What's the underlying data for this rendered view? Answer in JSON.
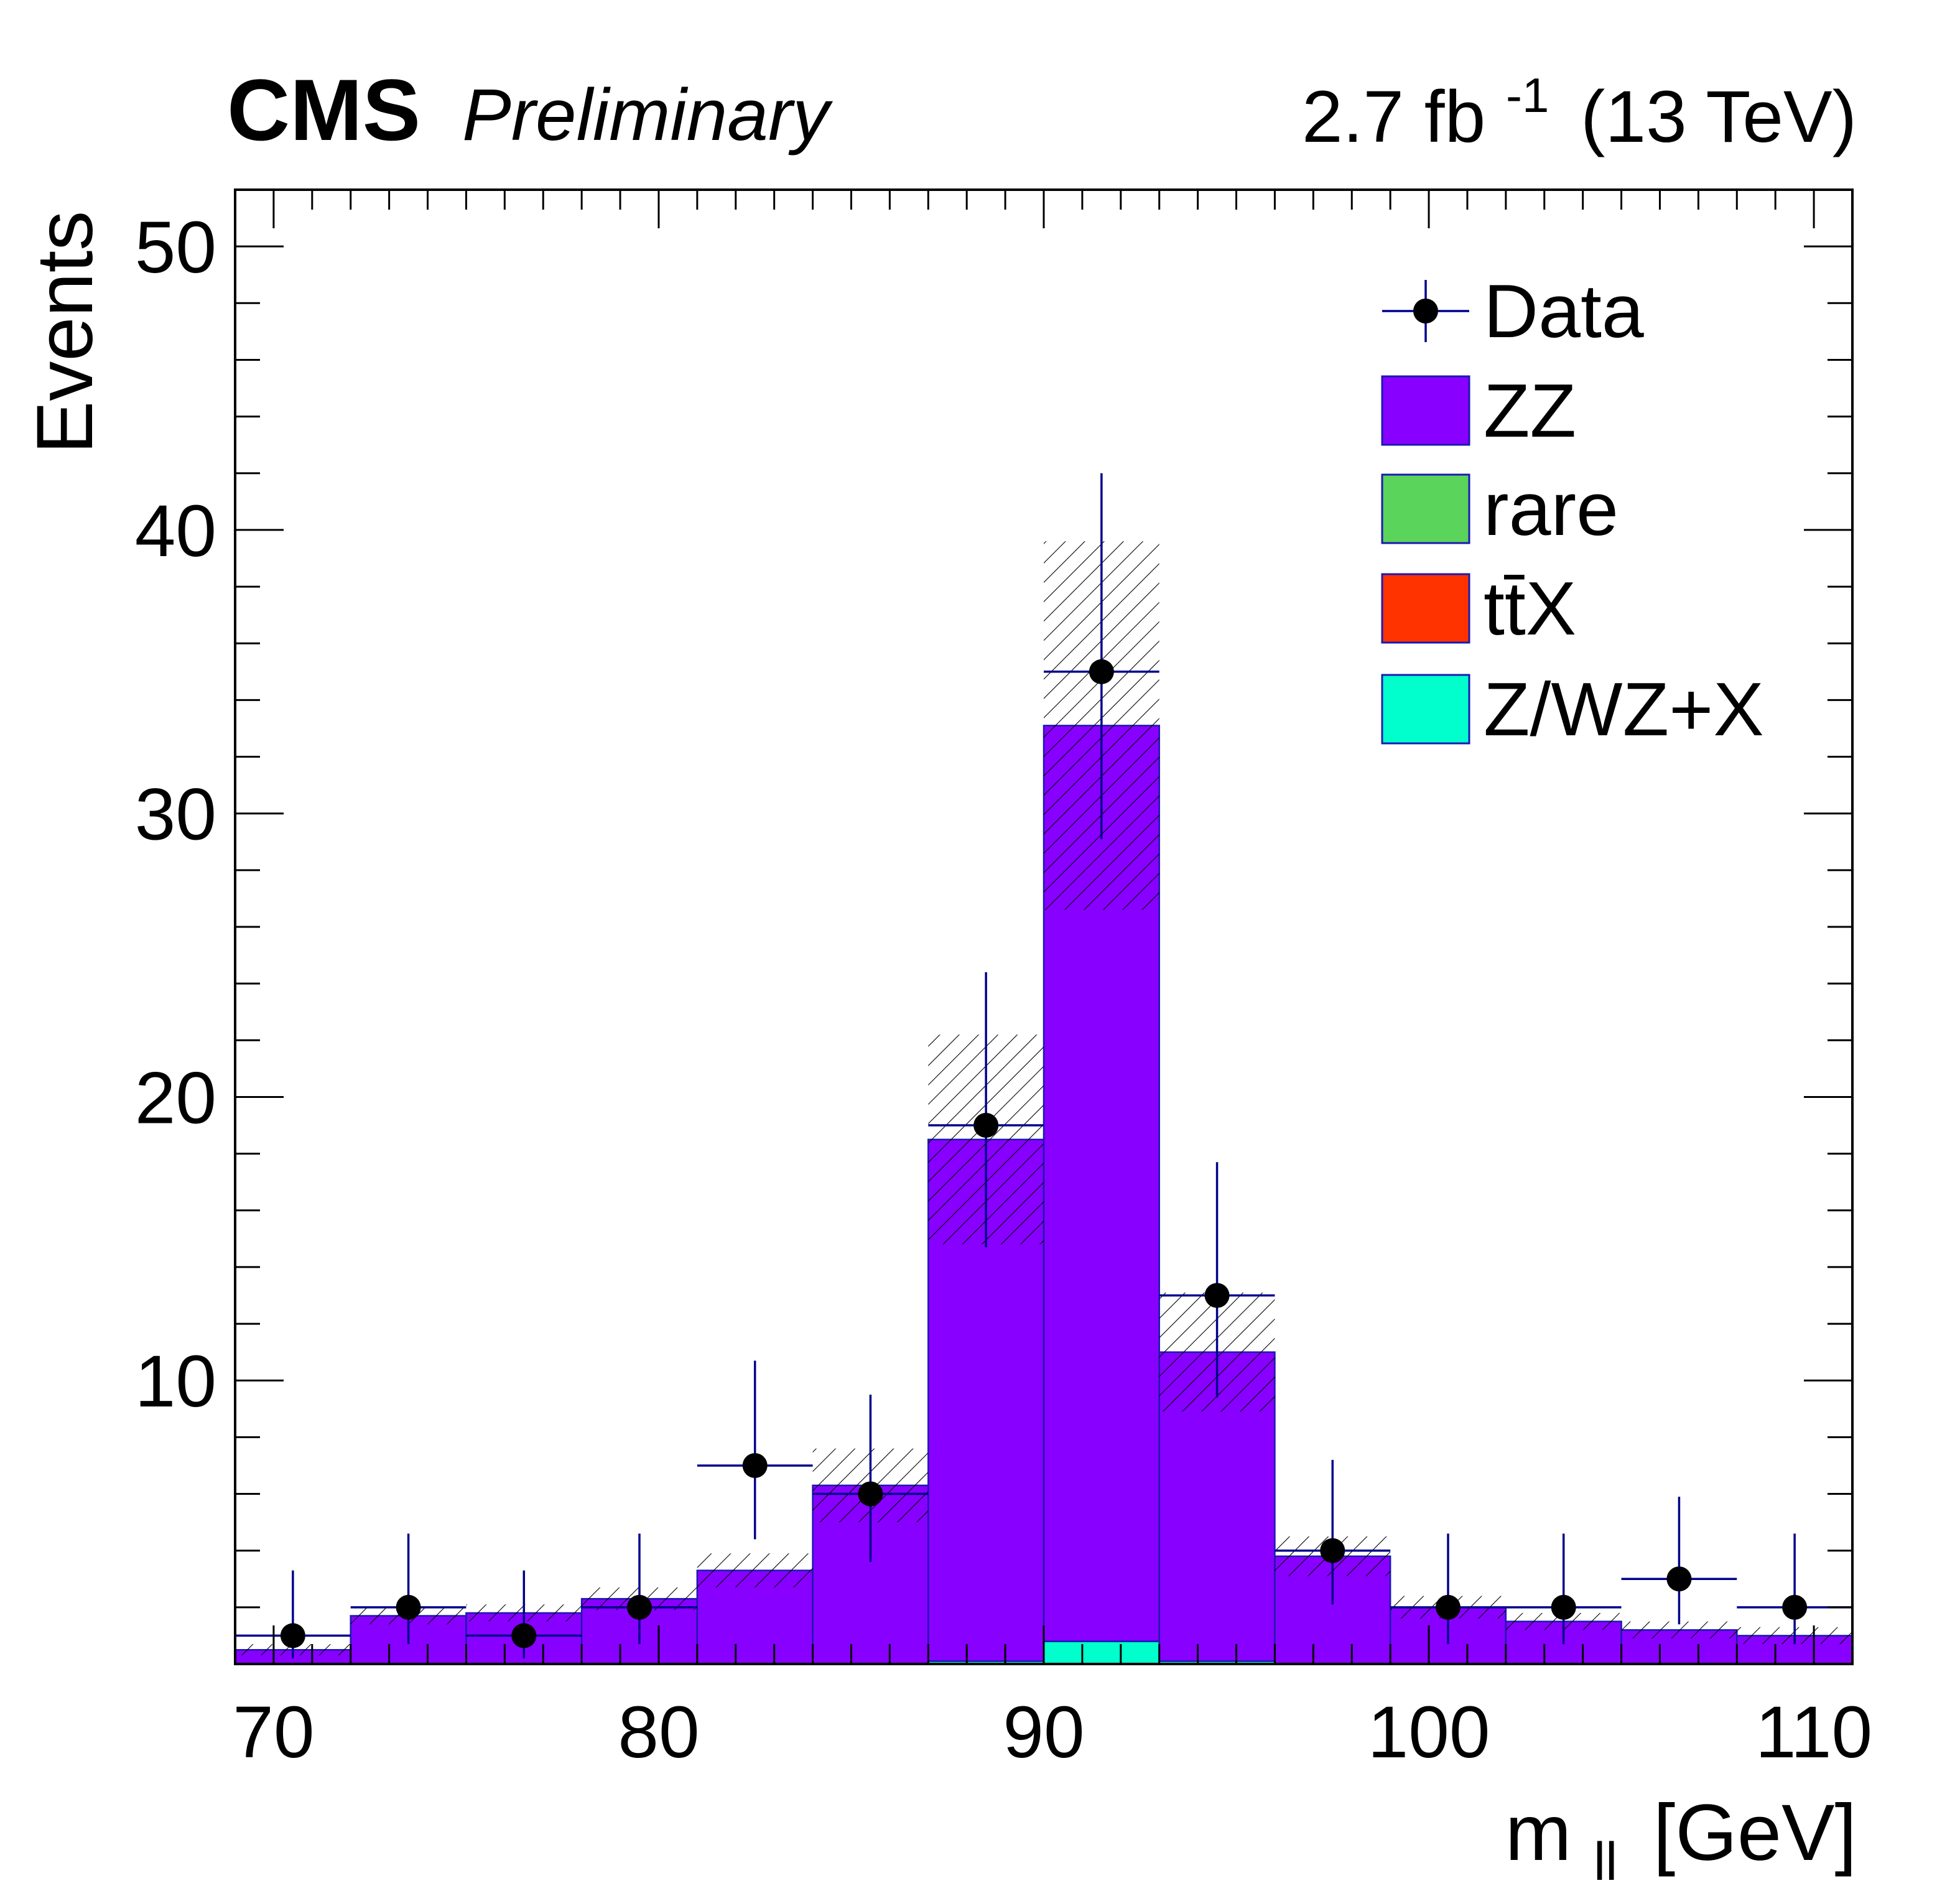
{
  "header": {
    "experiment": "CMS",
    "status": "Preliminary",
    "lumi_value": "2.7 fb",
    "lumi_exp": "-1",
    "energy": "(13 TeV)"
  },
  "chart_data": {
    "type": "bar",
    "histogram": true,
    "stacked": true,
    "xlabel_main": "m",
    "xlabel_sub": "ll",
    "xlabel_unit": "[GeV]",
    "ylabel": "Events",
    "xlim": [
      69,
      111
    ],
    "ylim": [
      0,
      52
    ],
    "xticks": [
      70,
      80,
      90,
      100,
      110
    ],
    "yticks": [
      10,
      20,
      30,
      40,
      50
    ],
    "grid": false,
    "legend_position": "top-right",
    "bin_edges": [
      69,
      72,
      75,
      78,
      81,
      84,
      87,
      90,
      93,
      96,
      99,
      102,
      105,
      108,
      111
    ],
    "bin_centers": [
      70.5,
      73.5,
      76.5,
      79.5,
      82.5,
      85.5,
      88.5,
      91.5,
      94.5,
      97.5,
      100.5,
      103.5,
      106.5,
      109.5
    ],
    "series": [
      {
        "name": "Z/WZ+X",
        "color": "#00ffcc",
        "values": [
          0,
          0,
          0,
          0,
          0,
          0,
          0.1,
          0.8,
          0.1,
          0,
          0,
          0,
          0,
          0
        ]
      },
      {
        "name": "tt̄X",
        "color": "#ff3300",
        "values": [
          0,
          0,
          0,
          0,
          0,
          0,
          0,
          0,
          0,
          0,
          0,
          0,
          0,
          0
        ]
      },
      {
        "name": "rare",
        "color": "#5ad45a",
        "values": [
          0,
          0,
          0,
          0,
          0,
          0,
          0,
          0,
          0,
          0,
          0,
          0,
          0,
          0
        ]
      },
      {
        "name": "ZZ",
        "color": "#8800ff",
        "values": [
          0.5,
          1.7,
          1.8,
          2.3,
          3.3,
          6.3,
          18.4,
          32.3,
          10.9,
          3.8,
          2.0,
          1.5,
          1.2,
          1.0
        ]
      }
    ],
    "mc_uncertainty": [
      0.2,
      0.3,
      0.3,
      0.4,
      0.6,
      1.3,
      3.7,
      6.5,
      2.1,
      0.7,
      0.4,
      0.3,
      0.3,
      0.3
    ],
    "data": {
      "name": "Data",
      "values": [
        1,
        2,
        1,
        2,
        7,
        6,
        19,
        35,
        13,
        4,
        2,
        2,
        3,
        2
      ],
      "err_up": [
        2.3,
        2.6,
        2.3,
        2.6,
        3.7,
        3.5,
        5.4,
        7.0,
        4.7,
        3.2,
        2.6,
        2.6,
        2.9,
        2.6
      ],
      "err_down": [
        0.8,
        1.3,
        0.8,
        1.3,
        2.6,
        2.4,
        4.3,
        5.9,
        3.6,
        1.9,
        1.3,
        1.3,
        1.6,
        1.3
      ]
    },
    "legend": [
      {
        "label": "Data",
        "kind": "marker"
      },
      {
        "label": "ZZ",
        "kind": "box",
        "color": "#8800ff"
      },
      {
        "label": "rare",
        "kind": "box",
        "color": "#5ad45a"
      },
      {
        "label": "tt̄X",
        "kind": "box",
        "color": "#ff3300"
      },
      {
        "label": "Z/WZ+X",
        "kind": "box",
        "color": "#00ffcc"
      }
    ],
    "colors": {
      "data_line": "#00008b",
      "frame": "#000000",
      "outline": "#1a1ab0",
      "hatch": "#000000"
    }
  }
}
